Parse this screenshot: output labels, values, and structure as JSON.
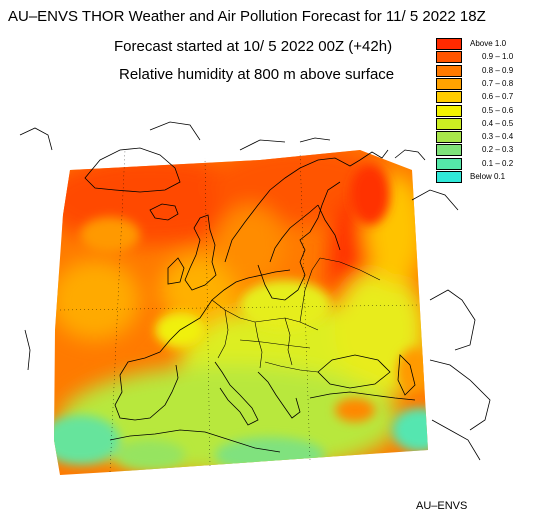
{
  "header": {
    "title": "AU–ENVS THOR Weather and Air Pollution Forecast for 11/ 5 2022  18Z",
    "forecast_start": "Forecast started at 10/ 5 2022  00Z (+42h)",
    "variable": "Relative humidity at 800 m above surface"
  },
  "legend": {
    "items": [
      {
        "label": "Above   1.0",
        "color": "#ff2a00"
      },
      {
        "label": "0.9 – 1.0",
        "color": "#ff5500"
      },
      {
        "label": "0.8 – 0.9",
        "color": "#ff7a00"
      },
      {
        "label": "0.7 – 0.8",
        "color": "#ffa200"
      },
      {
        "label": "0.6 – 0.7",
        "color": "#ffcc00"
      },
      {
        "label": "0.5 – 0.6",
        "color": "#f2f200"
      },
      {
        "label": "0.4 – 0.5",
        "color": "#ccee22"
      },
      {
        "label": "0.3 – 0.4",
        "color": "#a8e64a"
      },
      {
        "label": "0.2 – 0.3",
        "color": "#7fe27a"
      },
      {
        "label": "0.1 – 0.2",
        "color": "#55e8a8"
      },
      {
        "label": "Below   0.1",
        "color": "#30e8d8"
      }
    ]
  },
  "footer": {
    "credit": "AU–ENVS"
  }
}
